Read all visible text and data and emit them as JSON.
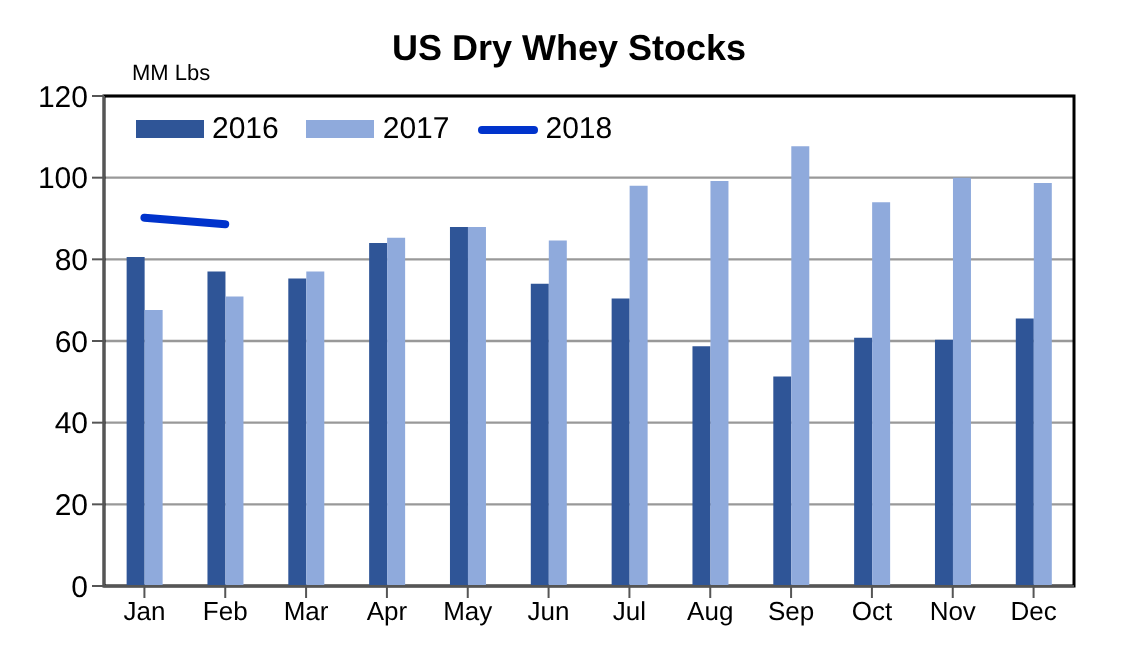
{
  "chart_data": {
    "type": "bar",
    "title": "US Dry Whey Stocks",
    "ylabel": "MM Lbs",
    "categories": [
      "Jan",
      "Feb",
      "Mar",
      "Apr",
      "May",
      "Jun",
      "Jul",
      "Aug",
      "Sep",
      "Oct",
      "Nov",
      "Dec"
    ],
    "series": [
      {
        "name": "2016",
        "color": "#2f5597",
        "values": [
          80.6,
          77,
          75.3,
          84,
          87.9,
          74,
          70.4,
          58.7,
          51.3,
          60.8,
          60.3,
          65.5
        ]
      },
      {
        "name": "2017",
        "color": "#8faadc",
        "values": [
          67.6,
          70.9,
          77,
          85.3,
          87.9,
          84.6,
          98,
          99.2,
          107.7,
          94,
          100,
          98.7
        ]
      },
      {
        "name": "2018",
        "type": "line",
        "color": "#0033cc",
        "values": [
          90.2,
          88.6,
          null,
          null,
          null,
          null,
          null,
          null,
          null,
          null,
          null,
          null
        ]
      }
    ],
    "ylim": [
      0,
      120
    ],
    "yticks": [
      0,
      20,
      40,
      60,
      80,
      100,
      120
    ],
    "grid": "y",
    "legend": "top left",
    "marker": "none"
  }
}
